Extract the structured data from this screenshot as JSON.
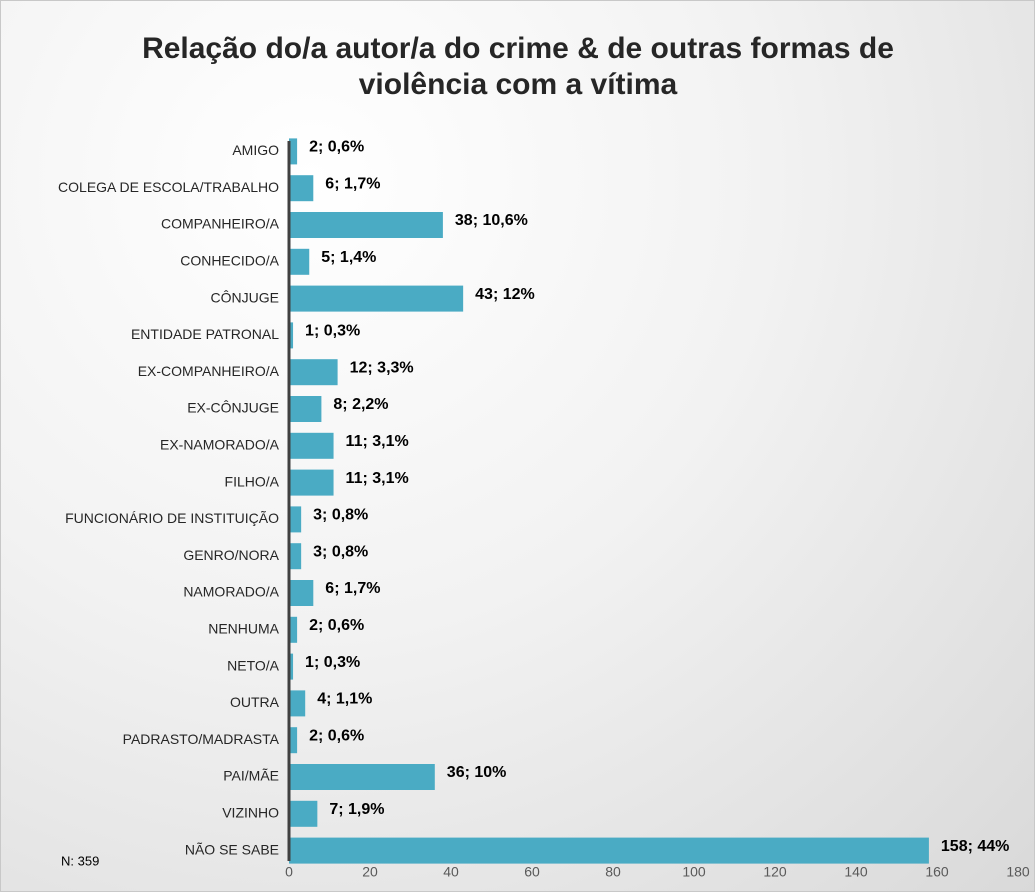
{
  "chart_data": {
    "type": "hbar",
    "title": "Relação do/a autor/a do crime & de outras formas de violência com a vítima",
    "annotation": "N: 359",
    "color": "#4aabc4",
    "categories": [
      "AMIGO",
      "COLEGA DE ESCOLA/TRABALHO",
      "COMPANHEIRO/A",
      "CONHECIDO/A",
      "CÔNJUGE",
      "ENTIDADE PATRONAL",
      "EX-COMPANHEIRO/A",
      "EX-CÔNJUGE",
      "EX-NAMORADO/A",
      "FILHO/A",
      "FUNCIONÁRIO DE INSTITUIÇÃO",
      "GENRO/NORA",
      "NAMORADO/A",
      "NENHUMA",
      "NETO/A",
      "OUTRA",
      "PADRASTO/MADRASTA",
      "PAI/MÃE",
      "VIZINHO",
      "NÃO SE SABE"
    ],
    "values": [
      2,
      6,
      38,
      5,
      43,
      1,
      12,
      8,
      11,
      11,
      3,
      3,
      6,
      2,
      1,
      4,
      2,
      36,
      7,
      158
    ],
    "value_labels": [
      "2; 0,6%",
      "6; 1,7%",
      "38; 10,6%",
      "5; 1,4%",
      "43; 12%",
      "1; 0,3%",
      "12; 3,3%",
      "8; 2,2%",
      "11; 3,1%",
      "11; 3,1%",
      "3; 0,8%",
      "3; 0,8%",
      "6; 1,7%",
      "2; 0,6%",
      "1; 0,3%",
      "4; 1,1%",
      "2; 0,6%",
      "36; 10%",
      "7; 1,9%",
      "158; 44%"
    ],
    "xlim": [
      0,
      180
    ],
    "xticks": [
      0,
      20,
      40,
      60,
      80,
      100,
      120,
      140,
      160,
      180
    ]
  }
}
